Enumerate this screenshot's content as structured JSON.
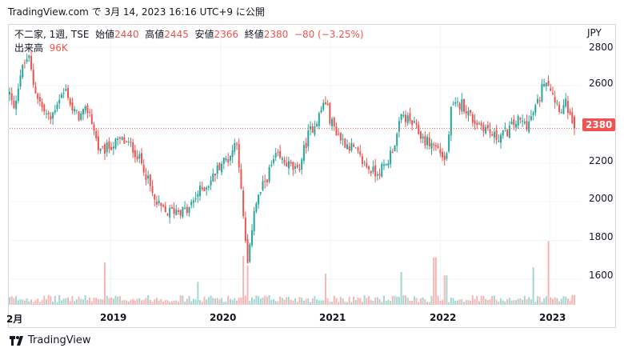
{
  "header": {
    "text": "TradingView.com で 3月 14, 2023 16:16 UTC+9 に公開"
  },
  "legend": {
    "symbol": "不二家, 1週, TSE",
    "open_label": "始値",
    "open": "2440",
    "high_label": "高値",
    "high": "2445",
    "low_label": "安値",
    "low": "2366",
    "close_label": "終値",
    "close": "2380",
    "change": "−80 (−3.25%)",
    "volume_label": "出来高",
    "volume": "96K"
  },
  "currency": "JPY",
  "last_price_tag": "2380",
  "footer": {
    "brand": "TradingView"
  },
  "colors": {
    "up": "#26a69a",
    "down": "#ef5350",
    "dotted_line": "#ef5350"
  },
  "chart_data": {
    "type": "candlestick",
    "interval": "1 week",
    "y_ticks": [
      "2800",
      "2600",
      "2400",
      "2200",
      "2000",
      "1800",
      "1600"
    ],
    "x_ticks": [
      "2月",
      "2019",
      "2020",
      "2021",
      "2022",
      "2023"
    ],
    "ylim": [
      1440,
      2850
    ],
    "last_close": 2380,
    "price_path": [
      {
        "x": 2018.08,
        "y": 2560
      },
      {
        "x": 2018.12,
        "y": 2470
      },
      {
        "x": 2018.17,
        "y": 2650
      },
      {
        "x": 2018.25,
        "y": 2760
      },
      {
        "x": 2018.3,
        "y": 2600
      },
      {
        "x": 2018.38,
        "y": 2480
      },
      {
        "x": 2018.45,
        "y": 2420
      },
      {
        "x": 2018.52,
        "y": 2530
      },
      {
        "x": 2018.6,
        "y": 2580
      },
      {
        "x": 2018.65,
        "y": 2470
      },
      {
        "x": 2018.72,
        "y": 2440
      },
      {
        "x": 2018.8,
        "y": 2480
      },
      {
        "x": 2018.9,
        "y": 2250
      },
      {
        "x": 2019.0,
        "y": 2290
      },
      {
        "x": 2019.1,
        "y": 2320
      },
      {
        "x": 2019.2,
        "y": 2280
      },
      {
        "x": 2019.3,
        "y": 2180
      },
      {
        "x": 2019.4,
        "y": 2000
      },
      {
        "x": 2019.5,
        "y": 1940
      },
      {
        "x": 2019.6,
        "y": 1960
      },
      {
        "x": 2019.7,
        "y": 1950
      },
      {
        "x": 2019.8,
        "y": 2050
      },
      {
        "x": 2019.9,
        "y": 2100
      },
      {
        "x": 2020.0,
        "y": 2200
      },
      {
        "x": 2020.08,
        "y": 2230
      },
      {
        "x": 2020.15,
        "y": 2330
      },
      {
        "x": 2020.2,
        "y": 1950
      },
      {
        "x": 2020.25,
        "y": 1650
      },
      {
        "x": 2020.3,
        "y": 1960
      },
      {
        "x": 2020.4,
        "y": 2100
      },
      {
        "x": 2020.5,
        "y": 2230
      },
      {
        "x": 2020.6,
        "y": 2200
      },
      {
        "x": 2020.7,
        "y": 2150
      },
      {
        "x": 2020.8,
        "y": 2350
      },
      {
        "x": 2020.9,
        "y": 2450
      },
      {
        "x": 2020.95,
        "y": 2530
      },
      {
        "x": 2021.0,
        "y": 2420
      },
      {
        "x": 2021.1,
        "y": 2320
      },
      {
        "x": 2021.2,
        "y": 2280
      },
      {
        "x": 2021.3,
        "y": 2200
      },
      {
        "x": 2021.4,
        "y": 2150
      },
      {
        "x": 2021.5,
        "y": 2180
      },
      {
        "x": 2021.6,
        "y": 2330
      },
      {
        "x": 2021.65,
        "y": 2450
      },
      {
        "x": 2021.75,
        "y": 2400
      },
      {
        "x": 2021.85,
        "y": 2320
      },
      {
        "x": 2021.95,
        "y": 2290
      },
      {
        "x": 2022.0,
        "y": 2260
      },
      {
        "x": 2022.05,
        "y": 2200
      },
      {
        "x": 2022.1,
        "y": 2480
      },
      {
        "x": 2022.2,
        "y": 2510
      },
      {
        "x": 2022.3,
        "y": 2420
      },
      {
        "x": 2022.4,
        "y": 2390
      },
      {
        "x": 2022.5,
        "y": 2330
      },
      {
        "x": 2022.6,
        "y": 2360
      },
      {
        "x": 2022.7,
        "y": 2420
      },
      {
        "x": 2022.8,
        "y": 2400
      },
      {
        "x": 2022.9,
        "y": 2530
      },
      {
        "x": 2022.95,
        "y": 2650
      },
      {
        "x": 2023.0,
        "y": 2600
      },
      {
        "x": 2023.05,
        "y": 2520
      },
      {
        "x": 2023.1,
        "y": 2480
      },
      {
        "x": 2023.15,
        "y": 2510
      },
      {
        "x": 2023.2,
        "y": 2380
      }
    ],
    "volume_ylim": [
      0,
      220
    ],
    "volume_spikes": [
      {
        "x": 2018.95,
        "v": 130
      },
      {
        "x": 2019.8,
        "v": 70
      },
      {
        "x": 2020.2,
        "v": 150
      },
      {
        "x": 2020.25,
        "v": 120
      },
      {
        "x": 2020.95,
        "v": 95
      },
      {
        "x": 2021.65,
        "v": 100
      },
      {
        "x": 2021.95,
        "v": 145
      },
      {
        "x": 2022.05,
        "v": 90
      },
      {
        "x": 2022.85,
        "v": 115
      },
      {
        "x": 2022.98,
        "v": 195
      }
    ]
  }
}
